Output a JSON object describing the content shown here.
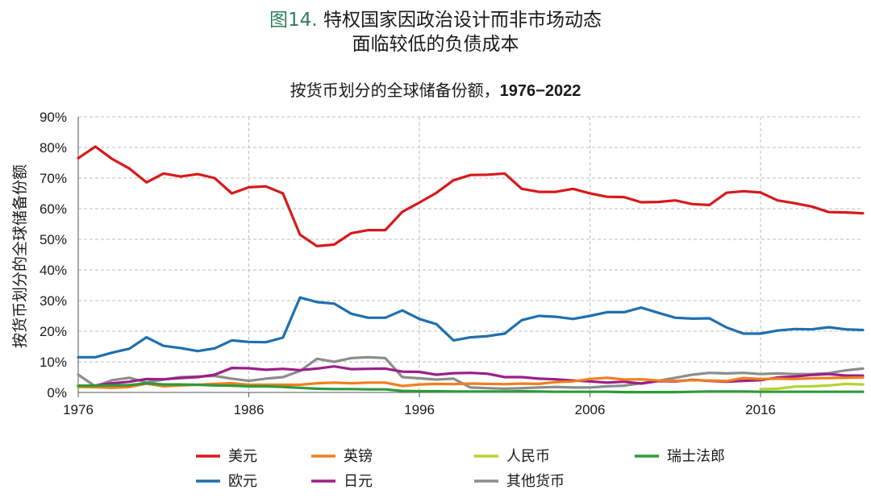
{
  "figure": {
    "label": "图14.",
    "title_line1": "特权国家因政治设计而非市场动态",
    "title_line2": "面临较低的负债成本"
  },
  "chart_data": {
    "type": "line",
    "title": "按货币划分的全球储备份额，",
    "title_years": "1976−2022",
    "ylabel": "按货币划分的全球储备份额",
    "xlabel": "",
    "xlim": [
      1976,
      2022
    ],
    "ylim": [
      0,
      90
    ],
    "xticks": [
      1976,
      1986,
      1996,
      2006,
      2016
    ],
    "yticks": [
      "0%",
      "10%",
      "20%",
      "30%",
      "40%",
      "50%",
      "60%",
      "70%",
      "80%",
      "90%"
    ],
    "grid": "horizontal-dashed",
    "legend_position": "bottom",
    "series": [
      {
        "name": "美元",
        "color": "#d7191c",
        "x": [
          1976,
          1977,
          1978,
          1979,
          1980,
          1981,
          1982,
          1983,
          1984,
          1985,
          1986,
          1987,
          1988,
          1989,
          1990,
          1991,
          1992,
          1993,
          1994,
          1995,
          1996,
          1997,
          1998,
          1999,
          2000,
          2001,
          2002,
          2003,
          2004,
          2005,
          2006,
          2007,
          2008,
          2009,
          2010,
          2011,
          2012,
          2013,
          2014,
          2015,
          2016,
          2017,
          2018,
          2019,
          2020,
          2021,
          2022
        ],
        "y": [
          76.5,
          80.3,
          76.2,
          73.1,
          68.6,
          71.5,
          70.5,
          71.3,
          70.0,
          65.0,
          67.0,
          67.3,
          65.0,
          51.5,
          47.8,
          48.3,
          52.0,
          53.0,
          53.0,
          59.0,
          62.0,
          65.2,
          69.3,
          71.0,
          71.1,
          71.5,
          66.5,
          65.5,
          65.5,
          66.5,
          65.0,
          63.9,
          63.8,
          62.1,
          62.2,
          62.7,
          61.5,
          61.2,
          65.2,
          65.7,
          65.3,
          62.7,
          61.8,
          60.7,
          58.9,
          58.8,
          58.5
        ]
      },
      {
        "name": "欧元",
        "color": "#1f6fae",
        "x": [
          1976,
          1977,
          1978,
          1979,
          1980,
          1981,
          1982,
          1983,
          1984,
          1985,
          1986,
          1987,
          1988,
          1989,
          1990,
          1991,
          1992,
          1993,
          1994,
          1995,
          1996,
          1997,
          1998,
          1999,
          2000,
          2001,
          2002,
          2003,
          2004,
          2005,
          2006,
          2007,
          2008,
          2009,
          2010,
          2011,
          2012,
          2013,
          2014,
          2015,
          2016,
          2017,
          2018,
          2019,
          2020,
          2021,
          2022
        ],
        "y": [
          11.5,
          11.5,
          13.0,
          14.3,
          18.0,
          15.2,
          14.5,
          13.5,
          14.4,
          17.0,
          16.5,
          16.4,
          17.9,
          31.0,
          29.5,
          29.0,
          25.7,
          24.4,
          24.4,
          26.8,
          24.0,
          22.3,
          17.0,
          18.0,
          18.4,
          19.2,
          23.6,
          25.0,
          24.7,
          24.0,
          25.0,
          26.2,
          26.2,
          27.7,
          26.0,
          24.4,
          24.1,
          24.2,
          21.2,
          19.2,
          19.2,
          20.2,
          20.7,
          20.6,
          21.3,
          20.6,
          20.4
        ]
      },
      {
        "name": "其他货币",
        "color": "#8c8c8c",
        "x": [
          1976,
          1977,
          1978,
          1979,
          1980,
          1981,
          1982,
          1983,
          1984,
          1985,
          1986,
          1987,
          1988,
          1989,
          1990,
          1991,
          1992,
          1993,
          1994,
          1995,
          1996,
          1997,
          1998,
          1999,
          2000,
          2001,
          2002,
          2003,
          2004,
          2005,
          2006,
          2007,
          2008,
          2009,
          2010,
          2011,
          2012,
          2013,
          2014,
          2015,
          2016,
          2017,
          2018,
          2019,
          2020,
          2021,
          2022
        ],
        "y": [
          5.8,
          2.0,
          4.0,
          4.8,
          3.3,
          4.2,
          5.0,
          5.2,
          5.4,
          4.5,
          3.8,
          4.5,
          5.0,
          7.0,
          11.0,
          10.0,
          11.2,
          11.5,
          11.2,
          5.0,
          4.6,
          4.2,
          4.5,
          1.6,
          1.4,
          1.2,
          1.4,
          1.6,
          1.8,
          1.6,
          1.6,
          2.0,
          2.2,
          3.0,
          3.8,
          4.8,
          5.8,
          6.4,
          6.2,
          6.4,
          6.0,
          6.2,
          6.0,
          6.0,
          6.3,
          7.2,
          7.8
        ]
      },
      {
        "name": "日元",
        "color": "#9c1f88",
        "x": [
          1976,
          1977,
          1978,
          1979,
          1980,
          1981,
          1982,
          1983,
          1984,
          1985,
          1986,
          1987,
          1988,
          1989,
          1990,
          1991,
          1992,
          1993,
          1994,
          1995,
          1996,
          1997,
          1998,
          1999,
          2000,
          2001,
          2002,
          2003,
          2004,
          2005,
          2006,
          2007,
          2008,
          2009,
          2010,
          2011,
          2012,
          2013,
          2014,
          2015,
          2016,
          2017,
          2018,
          2019,
          2020,
          2021,
          2022
        ],
        "y": [
          2.0,
          2.3,
          3.0,
          3.5,
          4.4,
          4.3,
          4.7,
          5.0,
          5.8,
          8.0,
          7.9,
          7.4,
          7.7,
          7.3,
          7.8,
          8.5,
          7.6,
          7.7,
          7.8,
          6.8,
          6.7,
          5.8,
          6.3,
          6.4,
          6.1,
          5.0,
          5.0,
          4.5,
          4.3,
          3.9,
          3.6,
          3.2,
          3.5,
          2.9,
          3.7,
          3.6,
          4.1,
          3.8,
          3.5,
          3.8,
          4.0,
          4.9,
          5.2,
          5.7,
          6.0,
          5.5,
          5.5
        ]
      },
      {
        "name": "英镑",
        "color": "#f07f1c",
        "x": [
          1976,
          1977,
          1978,
          1979,
          1980,
          1981,
          1982,
          1983,
          1984,
          1985,
          1986,
          1987,
          1988,
          1989,
          1990,
          1991,
          1992,
          1993,
          1994,
          1995,
          1996,
          1997,
          1998,
          1999,
          2000,
          2001,
          2002,
          2003,
          2004,
          2005,
          2006,
          2007,
          2008,
          2009,
          2010,
          2011,
          2012,
          2013,
          2014,
          2015,
          2016,
          2017,
          2018,
          2019,
          2020,
          2021,
          2022
        ],
        "y": [
          1.8,
          1.7,
          1.5,
          1.8,
          2.9,
          2.0,
          2.3,
          2.5,
          2.8,
          3.0,
          2.5,
          2.5,
          2.5,
          2.5,
          3.0,
          3.2,
          3.0,
          3.2,
          3.2,
          2.1,
          2.6,
          2.8,
          2.7,
          2.9,
          2.8,
          2.7,
          2.9,
          2.8,
          3.4,
          3.6,
          4.4,
          4.8,
          4.2,
          4.3,
          3.9,
          3.8,
          4.0,
          3.9,
          3.7,
          4.7,
          4.4,
          4.5,
          4.4,
          4.6,
          4.7,
          4.8,
          4.9
        ]
      },
      {
        "name": "瑞士法郎",
        "color": "#2e9a3a",
        "x": [
          1976,
          1977,
          1978,
          1979,
          1980,
          1981,
          1982,
          1983,
          1984,
          1985,
          1986,
          1987,
          1988,
          1989,
          1990,
          1991,
          1992,
          1993,
          1994,
          1995,
          1996,
          1997,
          1998,
          1999,
          2000,
          2001,
          2002,
          2003,
          2004,
          2005,
          2006,
          2007,
          2008,
          2009,
          2010,
          2011,
          2012,
          2013,
          2014,
          2015,
          2016,
          2017,
          2018,
          2019,
          2020,
          2021,
          2022
        ],
        "y": [
          2.2,
          2.2,
          2.3,
          2.4,
          3.0,
          2.6,
          2.6,
          2.5,
          2.3,
          2.2,
          2.0,
          2.0,
          1.8,
          1.5,
          1.2,
          1.1,
          1.1,
          1.0,
          1.0,
          0.5,
          0.4,
          0.4,
          0.3,
          0.3,
          0.3,
          0.3,
          0.4,
          0.3,
          0.2,
          0.2,
          0.2,
          0.2,
          0.1,
          0.1,
          0.1,
          0.1,
          0.2,
          0.3,
          0.3,
          0.3,
          0.2,
          0.2,
          0.2,
          0.2,
          0.2,
          0.2,
          0.2
        ]
      },
      {
        "name": "人民币",
        "color": "#b5d334",
        "x": [
          2016,
          2017,
          2018,
          2019,
          2020,
          2021,
          2022
        ],
        "y": [
          1.1,
          1.2,
          1.9,
          2.0,
          2.3,
          2.8,
          2.6
        ]
      }
    ]
  },
  "legend": {
    "items": [
      {
        "name": "美元",
        "color": "#d7191c"
      },
      {
        "name": "英镑",
        "color": "#f07f1c"
      },
      {
        "name": "人民币",
        "color": "#b5d334"
      },
      {
        "name": "瑞士法郎",
        "color": "#2e9a3a"
      },
      {
        "name": "欧元",
        "color": "#1f6fae"
      },
      {
        "name": "日元",
        "color": "#9c1f88"
      },
      {
        "name": "其他货币",
        "color": "#8c8c8c"
      }
    ]
  }
}
